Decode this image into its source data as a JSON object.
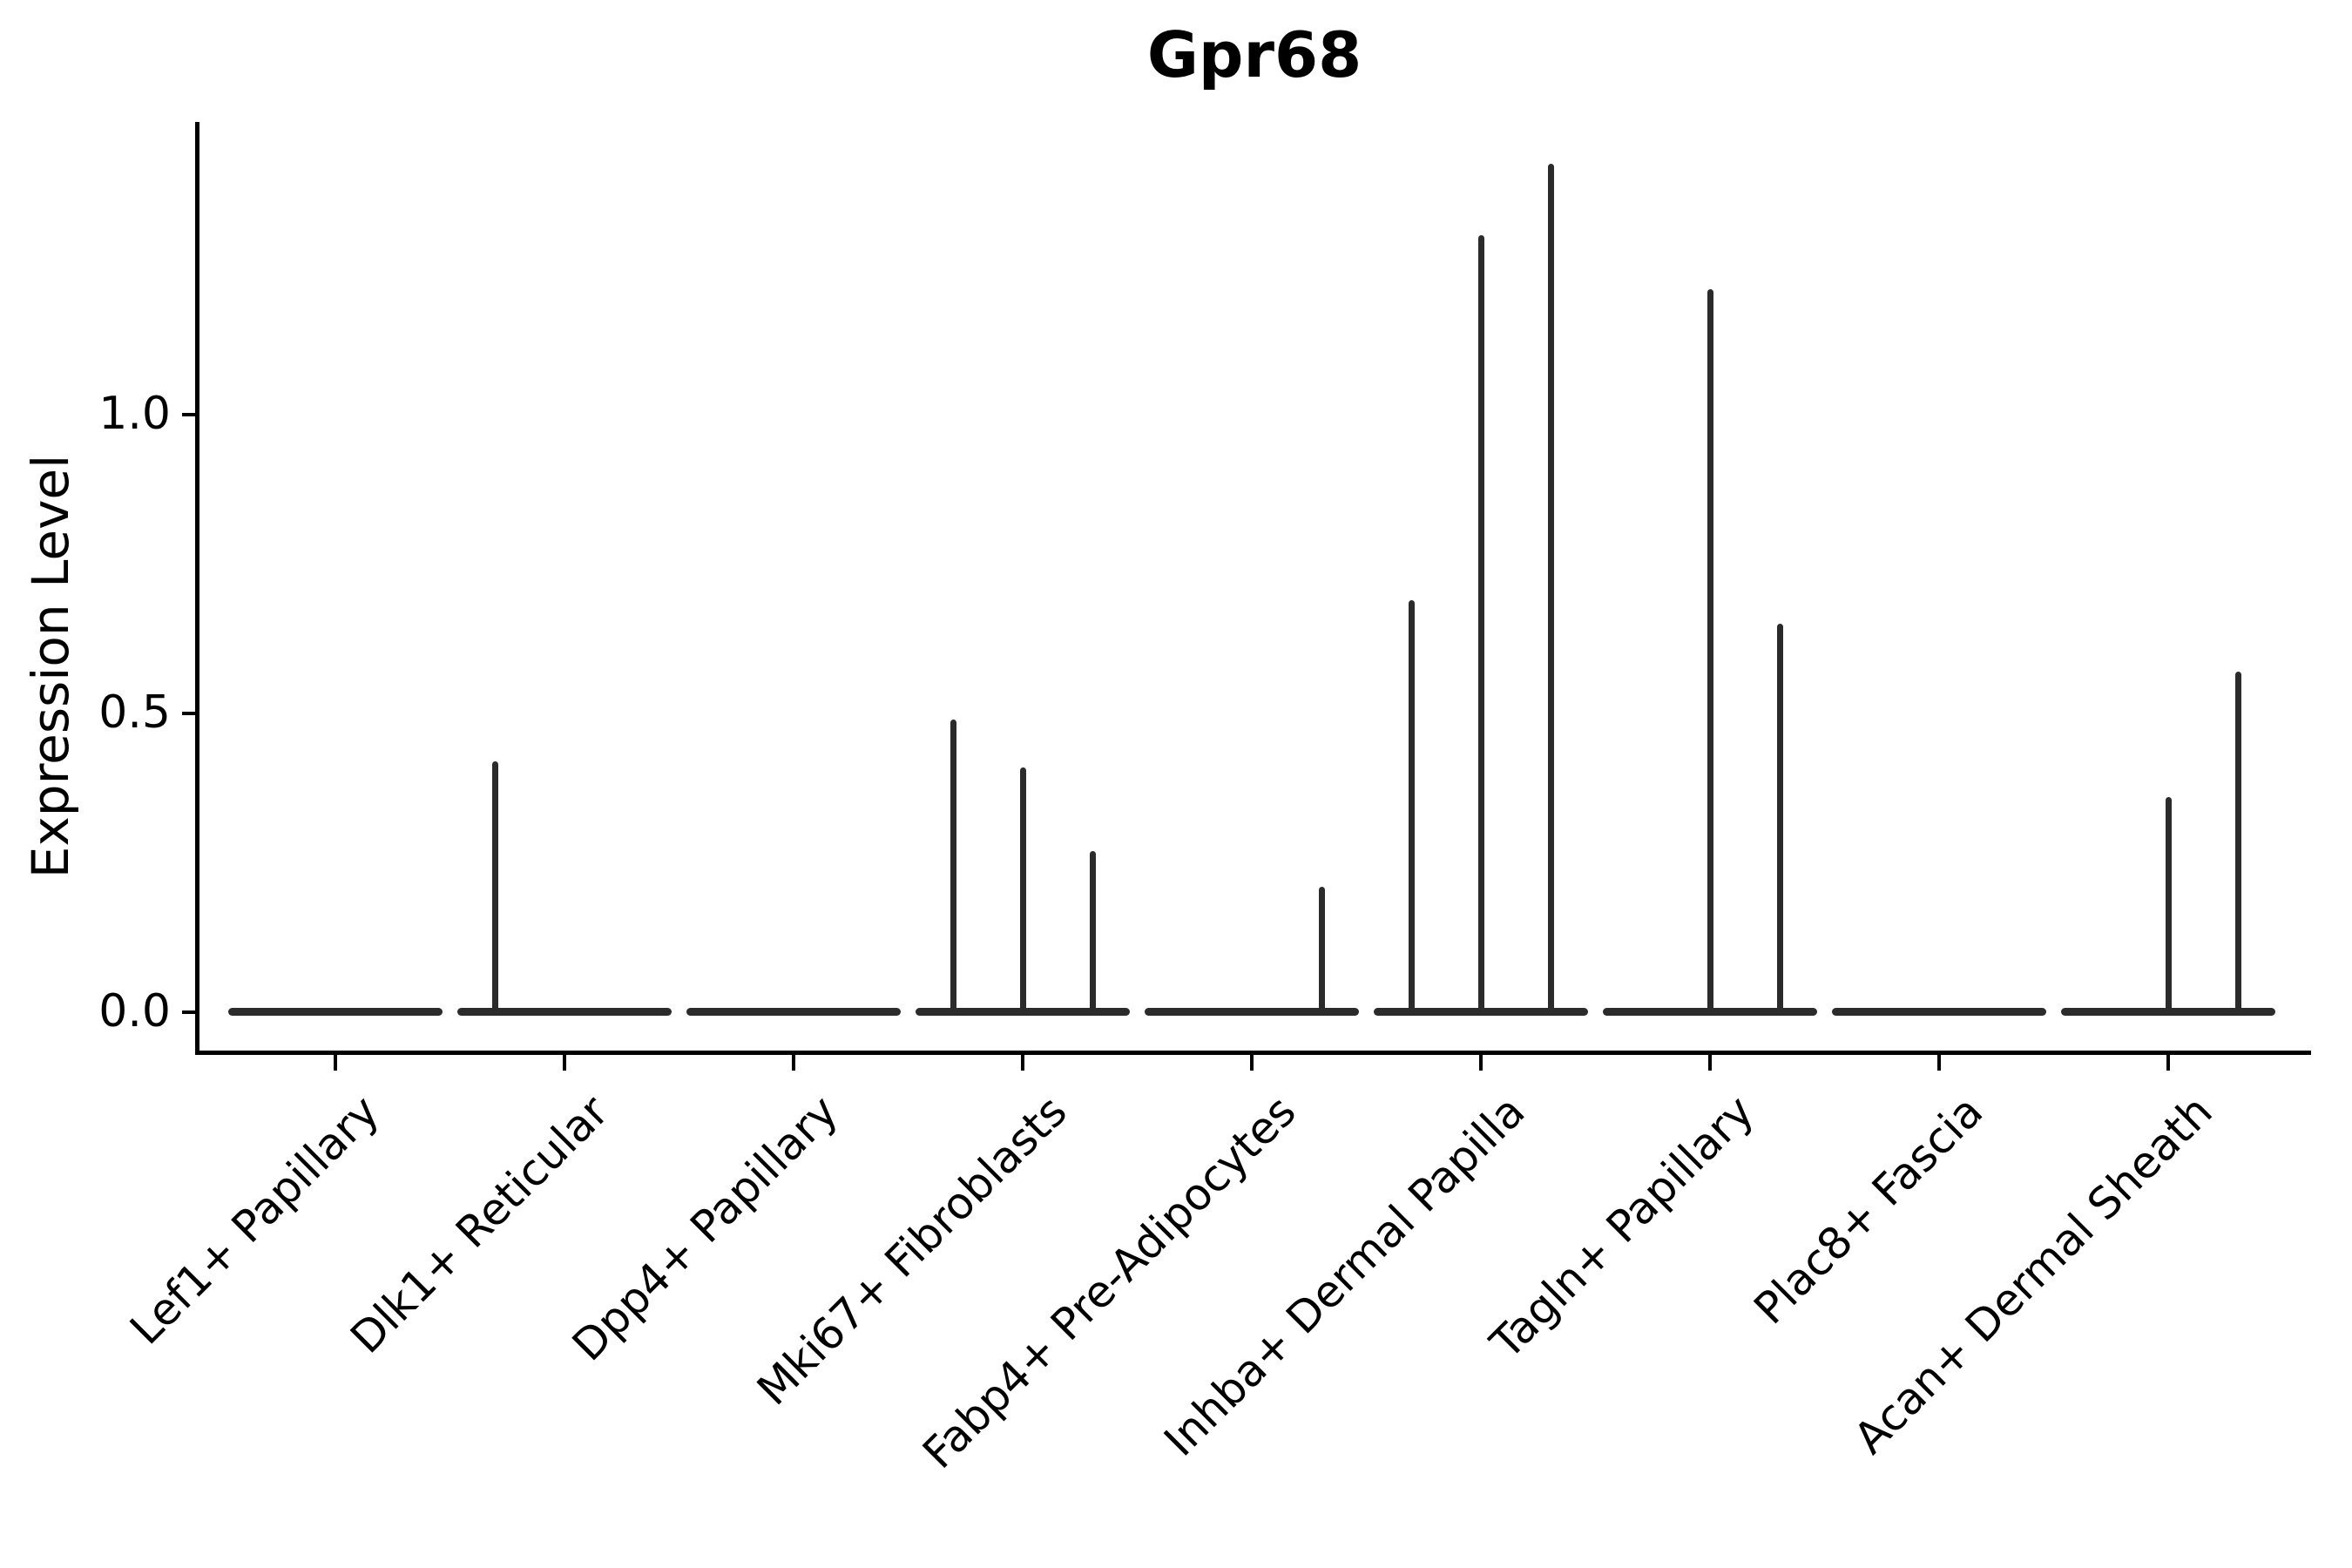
{
  "chart_data": {
    "type": "violin",
    "title": "Gpr68",
    "ylabel": "Expression Level",
    "xlabel": "",
    "yticks": [
      0.0,
      0.5,
      1.0
    ],
    "yticklabels": [
      "0.0",
      "0.5",
      "1.0"
    ],
    "ylim": [
      -0.07,
      1.49
    ],
    "grid": false,
    "legend": "none",
    "violins_per_category": 3,
    "categories": [
      "Lef1+ Papillary",
      "Dlk1+ Reticular",
      "Dpp4+ Papillary",
      "Mki67+ Fibroblasts",
      "Fabp4+ Pre-Adipocytes",
      "Inhba+ Dermal Papilla",
      "Tagln+ Papillary",
      "Plac8+ Fascia",
      "Acan+ Dermal Sheath"
    ],
    "violin_maxima": [
      [
        0,
        0,
        0
      ],
      [
        0.42,
        0,
        0
      ],
      [
        0,
        0,
        0
      ],
      [
        0.49,
        0.41,
        0.27
      ],
      [
        0,
        0,
        0.21
      ],
      [
        0.69,
        1.3,
        1.42
      ],
      [
        0,
        1.21,
        0.65
      ],
      [
        0,
        0,
        0
      ],
      [
        0,
        0.36,
        0.57
      ]
    ]
  }
}
